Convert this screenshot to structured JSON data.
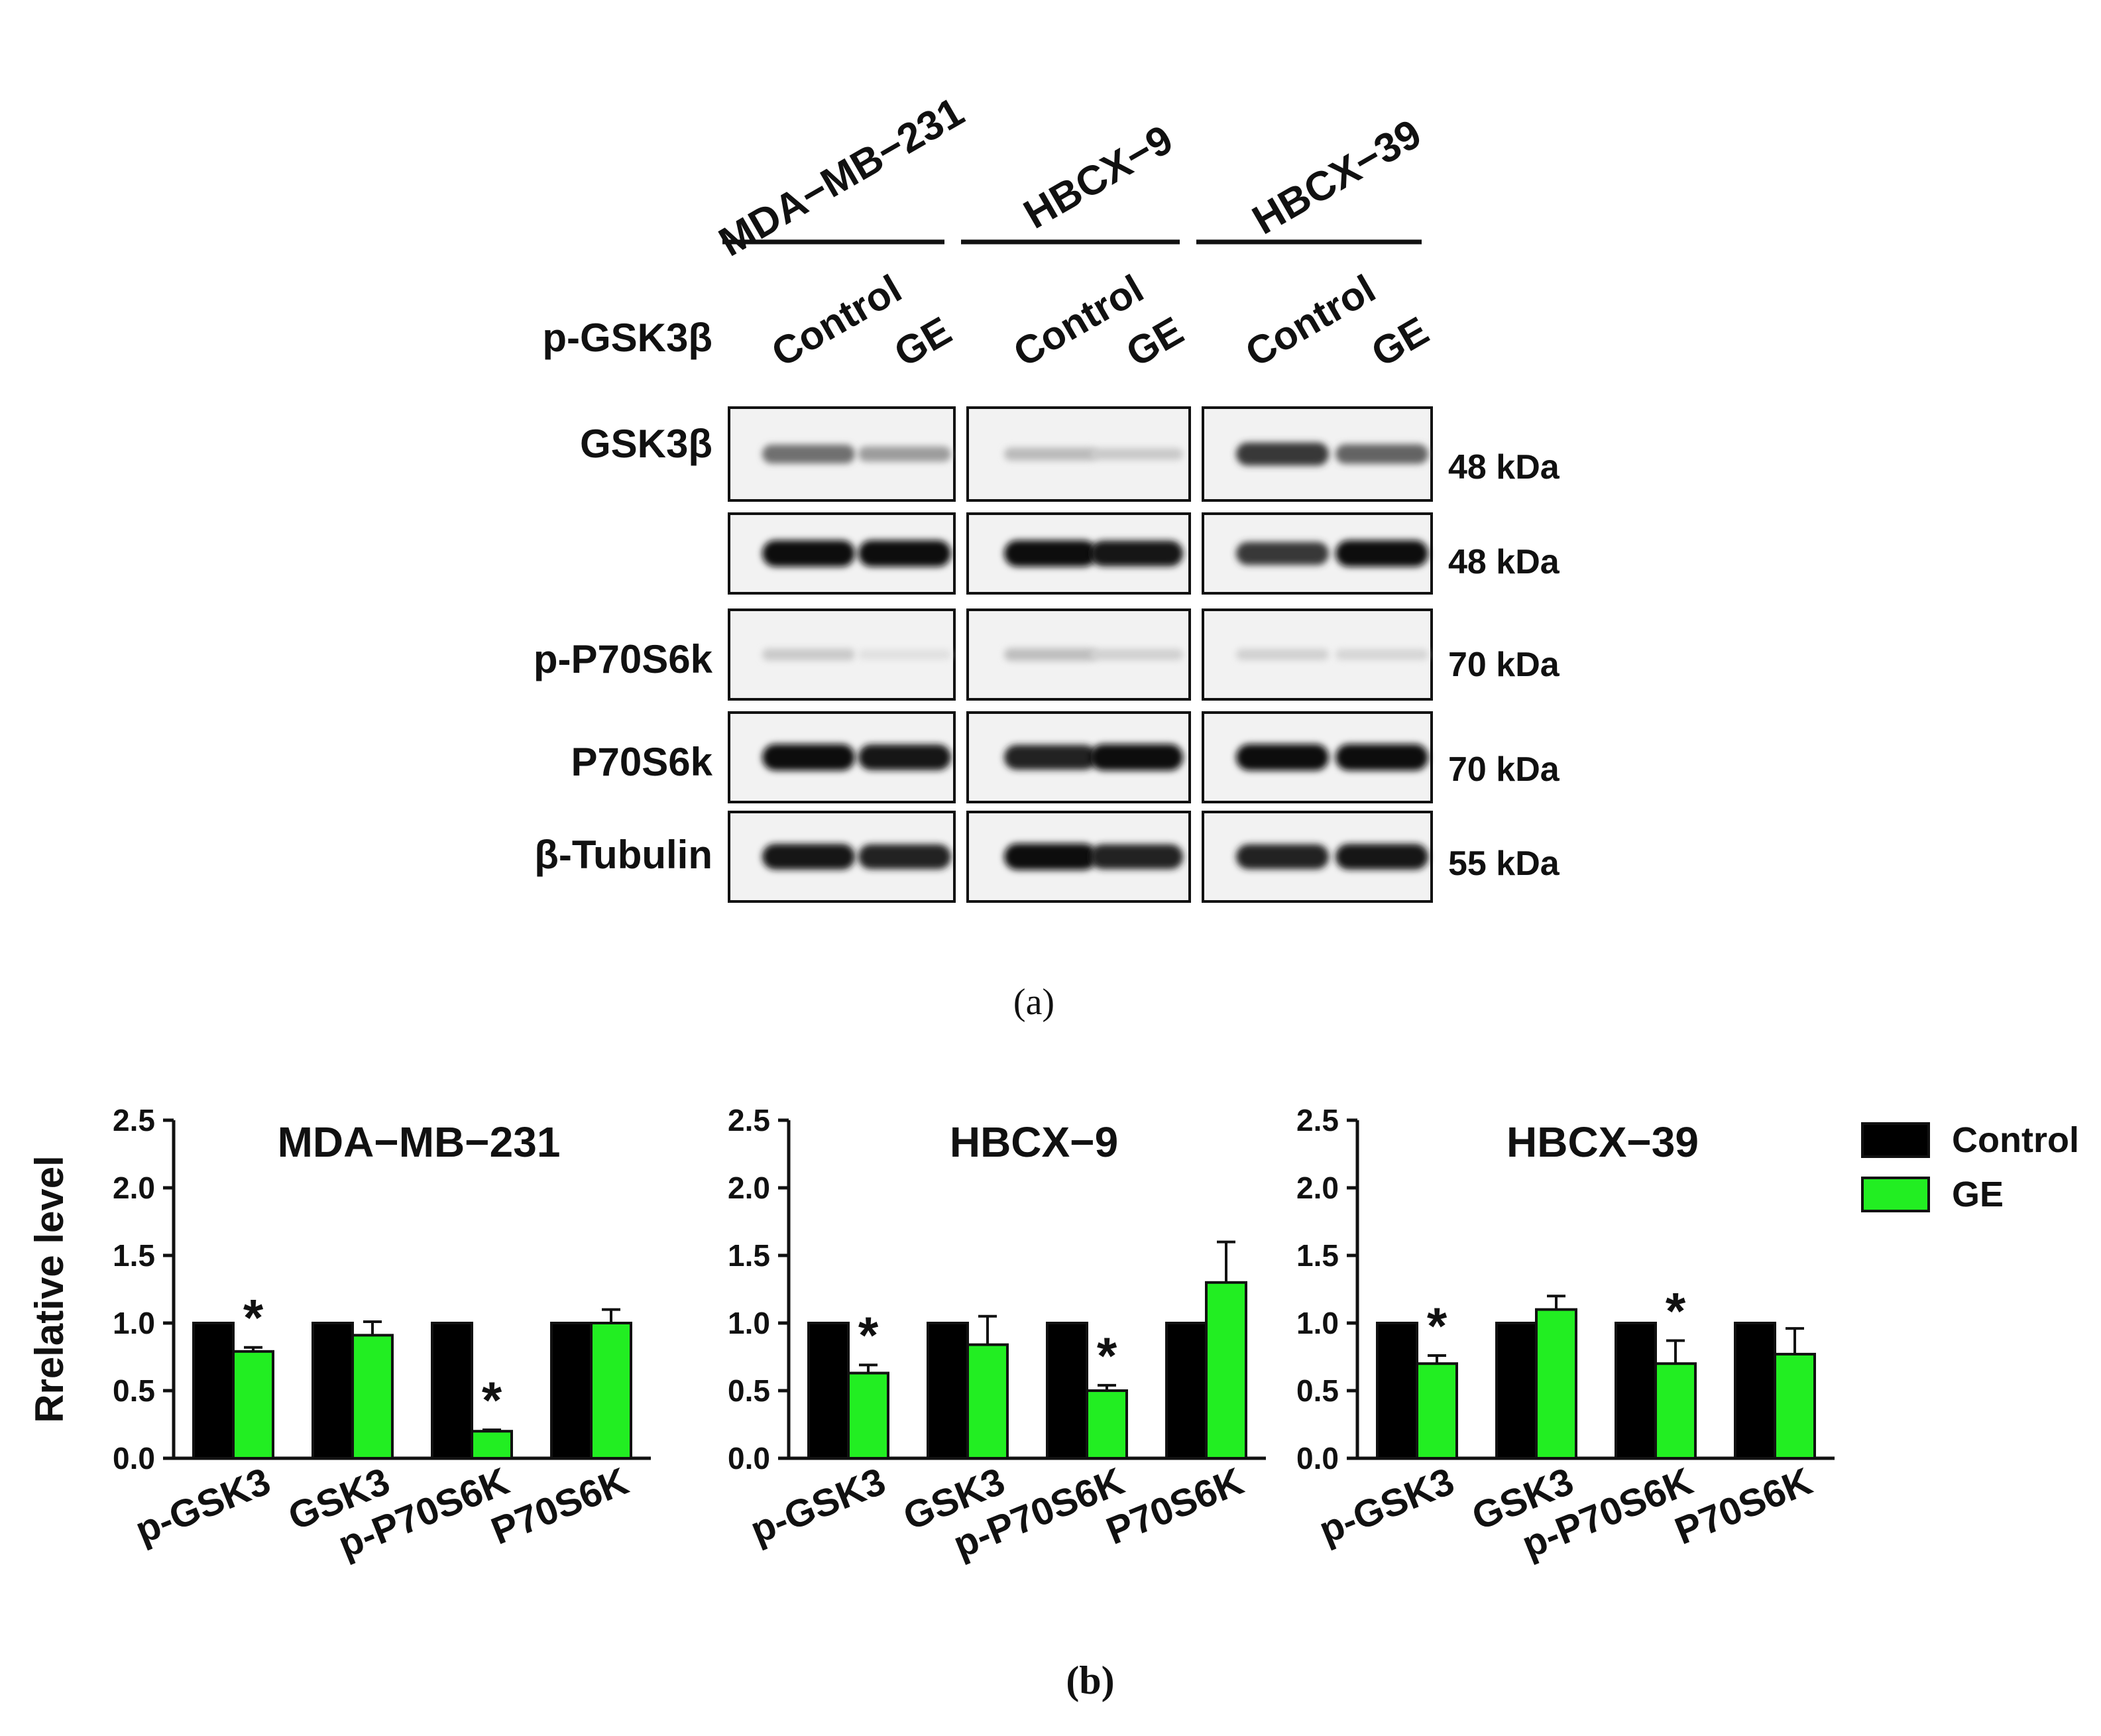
{
  "panel_a": {
    "caption": "(a)",
    "cell_lines": [
      "MDA−MB−231",
      "HBCX−9",
      "HBCX−39"
    ],
    "lanes": [
      "Control",
      "GE"
    ],
    "blots": [
      {
        "label": "p-GSK3β",
        "marker": "48 kDa",
        "intensity": [
          [
            0.55,
            0.35
          ],
          [
            0.22,
            0.15
          ],
          [
            0.8,
            0.6
          ]
        ]
      },
      {
        "label": "GSK3β",
        "marker": "48 kDa",
        "intensity": [
          [
            1.0,
            1.0
          ],
          [
            1.0,
            0.95
          ],
          [
            0.8,
            1.0
          ]
        ]
      },
      {
        "label": "p-P70S6k",
        "marker": "70 kDa",
        "intensity": [
          [
            0.15,
            0.05
          ],
          [
            0.2,
            0.12
          ],
          [
            0.12,
            0.1
          ]
        ]
      },
      {
        "label": "P70S6k",
        "marker": "70 kDa",
        "intensity": [
          [
            1.0,
            0.95
          ],
          [
            0.9,
            1.0
          ],
          [
            1.0,
            1.0
          ]
        ]
      },
      {
        "label": "β-Tubulin",
        "marker": "55 kDa",
        "intensity": [
          [
            0.95,
            0.9
          ],
          [
            1.0,
            0.9
          ],
          [
            0.9,
            0.95
          ]
        ]
      }
    ]
  },
  "panel_b": {
    "caption": "(b)",
    "ylabel": "Rrelative level",
    "legend": {
      "placement": "top-right",
      "entries": [
        "Control",
        "GE"
      ]
    },
    "colors": {
      "Control": "#000000",
      "GE": "#22ee22"
    }
  },
  "chart_data": [
    {
      "type": "bar",
      "title": "MDA−MB−231",
      "categories": [
        "p-GSK3",
        "GSK3",
        "p-P70S6K",
        "P70S6K"
      ],
      "ylabel": "Rrelative level",
      "ylim": [
        0,
        2.5
      ],
      "yticks": [
        "0.0",
        "0.5",
        "1.0",
        "1.5",
        "2.0",
        "2.5"
      ],
      "series": [
        {
          "name": "Control",
          "values": [
            1.0,
            1.0,
            1.0,
            1.0
          ],
          "errors": [
            0,
            0,
            0,
            0
          ]
        },
        {
          "name": "GE",
          "values": [
            0.79,
            0.91,
            0.2,
            1.0
          ],
          "errors": [
            0.03,
            0.1,
            0.01,
            0.1
          ]
        }
      ],
      "significance": [
        "*",
        "",
        "*",
        ""
      ]
    },
    {
      "type": "bar",
      "title": "HBCX−9",
      "categories": [
        "p-GSK3",
        "GSK3",
        "p-P70S6K",
        "P70S6K"
      ],
      "ylabel": "",
      "ylim": [
        0,
        2.5
      ],
      "yticks": [
        "0.0",
        "0.5",
        "1.0",
        "1.5",
        "2.0",
        "2.5"
      ],
      "series": [
        {
          "name": "Control",
          "values": [
            1.0,
            1.0,
            1.0,
            1.0
          ],
          "errors": [
            0,
            0,
            0,
            0
          ]
        },
        {
          "name": "GE",
          "values": [
            0.63,
            0.84,
            0.5,
            1.3
          ],
          "errors": [
            0.06,
            0.21,
            0.04,
            0.3
          ]
        }
      ],
      "significance": [
        "*",
        "",
        "*",
        ""
      ]
    },
    {
      "type": "bar",
      "title": "HBCX−39",
      "categories": [
        "p-GSK3",
        "GSK3",
        "p-P70S6K",
        "P70S6K"
      ],
      "ylabel": "",
      "ylim": [
        0,
        2.5
      ],
      "yticks": [
        "0.0",
        "0.5",
        "1.0",
        "1.5",
        "2.0",
        "2.5"
      ],
      "series": [
        {
          "name": "Control",
          "values": [
            1.0,
            1.0,
            1.0,
            1.0
          ],
          "errors": [
            0,
            0,
            0,
            0
          ]
        },
        {
          "name": "GE",
          "values": [
            0.7,
            1.1,
            0.7,
            0.77
          ],
          "errors": [
            0.06,
            0.1,
            0.17,
            0.19
          ]
        }
      ],
      "significance": [
        "*",
        "",
        "*",
        ""
      ]
    }
  ]
}
